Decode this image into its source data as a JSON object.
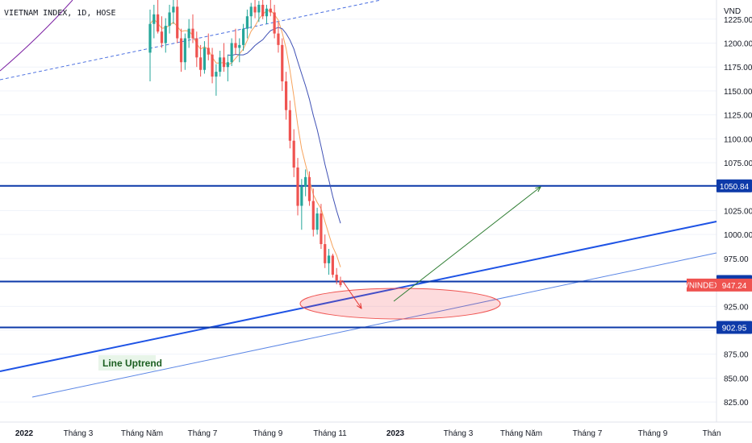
{
  "chart_data": {
    "type": "candlestick",
    "symbol_title": "VIETNAM INDEX, 1D, HOSE",
    "currency": "VND",
    "y_ticks": [
      "1225.00",
      "1200.00",
      "1175.00",
      "1150.00",
      "1125.00",
      "1100.00",
      "1075.00",
      "1050.00",
      "1025.00",
      "1000.00",
      "975.00",
      "950.00",
      "925.00",
      "900.00",
      "875.00",
      "850.00",
      "825.00"
    ],
    "x_ticks": [
      "2022",
      "Tháng 3",
      "Tháng Năm",
      "Tháng 7",
      "Tháng 9",
      "Tháng 11",
      "2023",
      "Tháng 3",
      "Tháng Năm",
      "Tháng 7",
      "Tháng 9",
      "Thán"
    ],
    "ylim": [
      810,
      1245
    ],
    "price_levels": [
      {
        "label": "1050.84",
        "value": 1050.84
      },
      {
        "label": "950.98",
        "value": 950.98
      },
      {
        "label": "902.95",
        "value": 902.95
      }
    ],
    "last_price": {
      "symbol": "VNINDEX",
      "label": "947.24",
      "value": 947.24
    },
    "annotation": "Line Uptrend",
    "colors": {
      "up": "#26a69a",
      "down": "#ef5350",
      "level": "#0d3aa9",
      "trend": "#1e53e5",
      "ma_fast": "#f7a35c",
      "ma_slow": "#3f51b5",
      "ma_long": "#7b1fa2"
    },
    "candles": [
      [
        1190,
        1235,
        1160,
        1220
      ],
      [
        1220,
        1240,
        1205,
        1230
      ],
      [
        1230,
        1245,
        1210,
        1212
      ],
      [
        1212,
        1228,
        1195,
        1200
      ],
      [
        1200,
        1226,
        1190,
        1218
      ],
      [
        1218,
        1240,
        1210,
        1232
      ],
      [
        1232,
        1245,
        1220,
        1238
      ],
      [
        1238,
        1245,
        1200,
        1205
      ],
      [
        1205,
        1215,
        1170,
        1180
      ],
      [
        1180,
        1210,
        1172,
        1205
      ],
      [
        1205,
        1225,
        1195,
        1215
      ],
      [
        1215,
        1230,
        1200,
        1205
      ],
      [
        1205,
        1212,
        1175,
        1185
      ],
      [
        1185,
        1198,
        1165,
        1172
      ],
      [
        1172,
        1202,
        1168,
        1195
      ],
      [
        1195,
        1210,
        1182,
        1188
      ],
      [
        1188,
        1195,
        1158,
        1165
      ],
      [
        1165,
        1178,
        1145,
        1170
      ],
      [
        1170,
        1192,
        1165,
        1185
      ],
      [
        1185,
        1200,
        1170,
        1175
      ],
      [
        1175,
        1188,
        1160,
        1180
      ],
      [
        1180,
        1205,
        1176,
        1200
      ],
      [
        1200,
        1215,
        1188,
        1195
      ],
      [
        1195,
        1205,
        1180,
        1198
      ],
      [
        1198,
        1220,
        1192,
        1215
      ],
      [
        1215,
        1235,
        1205,
        1228
      ],
      [
        1228,
        1242,
        1215,
        1238
      ],
      [
        1238,
        1245,
        1226,
        1232
      ],
      [
        1232,
        1244,
        1222,
        1240
      ],
      [
        1240,
        1245,
        1225,
        1228
      ],
      [
        1228,
        1240,
        1220,
        1236
      ],
      [
        1236,
        1245,
        1228,
        1232
      ],
      [
        1232,
        1240,
        1205,
        1210
      ],
      [
        1210,
        1222,
        1190,
        1198
      ],
      [
        1198,
        1205,
        1150,
        1160
      ],
      [
        1160,
        1170,
        1120,
        1130
      ],
      [
        1130,
        1140,
        1090,
        1098
      ],
      [
        1098,
        1110,
        1060,
        1070
      ],
      [
        1070,
        1080,
        1020,
        1030
      ],
      [
        1030,
        1058,
        1005,
        1050
      ],
      [
        1050,
        1068,
        1040,
        1060
      ],
      [
        1060,
        1066,
        1030,
        1035
      ],
      [
        1035,
        1048,
        998,
        1005
      ],
      [
        1005,
        1028,
        1000,
        1022
      ],
      [
        1022,
        1032,
        985,
        990
      ],
      [
        990,
        1000,
        965,
        970
      ],
      [
        970,
        985,
        958,
        978
      ],
      [
        978,
        980,
        955,
        958
      ],
      [
        958,
        965,
        948,
        952
      ],
      [
        952,
        956,
        945,
        947.24
      ]
    ]
  }
}
